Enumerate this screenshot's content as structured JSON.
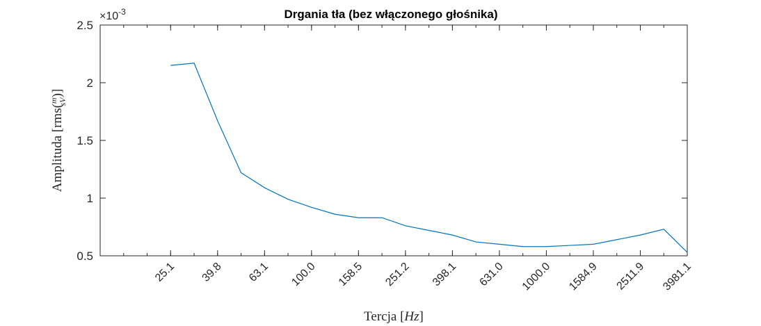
{
  "chart_data": {
    "type": "line",
    "title": "Drgania tła (bez włączonego głośnika)",
    "xlabel": "Tercja [Hz]",
    "ylabel": "Amplituda [rms(m/sV)]",
    "y_exponent_label": "×10",
    "y_exponent_power": "-3",
    "ylim": [
      0.5,
      2.5
    ],
    "y_ticks": [
      0.5,
      1,
      1.5,
      2,
      2.5
    ],
    "y_tick_labels": [
      "0.5",
      "1",
      "1.5",
      "2",
      "2.5"
    ],
    "x_range": [
      0,
      25
    ],
    "x_tick_labels": [
      "25.1",
      "39.8",
      "63.1",
      "100.0",
      "158.5",
      "251.2",
      "398.1",
      "631.0",
      "1000.0",
      "1584.9",
      "2511.9",
      "3981.1"
    ],
    "x_tick_positions": [
      3,
      5,
      7,
      9,
      11,
      13,
      15,
      17,
      19,
      21,
      23,
      25
    ],
    "grid": false,
    "colors": {
      "line": "#0072BD",
      "axes": "#262626"
    },
    "series": [
      {
        "x": [
          3,
          4,
          5,
          6,
          7,
          8,
          9,
          10,
          11,
          12,
          13,
          14,
          15,
          16,
          17,
          18,
          19,
          20,
          21,
          22,
          23,
          24,
          25
        ],
        "values": [
          2.15,
          2.17,
          1.67,
          1.22,
          1.09,
          0.99,
          0.92,
          0.86,
          0.83,
          0.83,
          0.76,
          0.72,
          0.68,
          0.62,
          0.6,
          0.58,
          0.58,
          0.59,
          0.6,
          0.64,
          0.68,
          0.73,
          0.53
        ]
      }
    ]
  }
}
